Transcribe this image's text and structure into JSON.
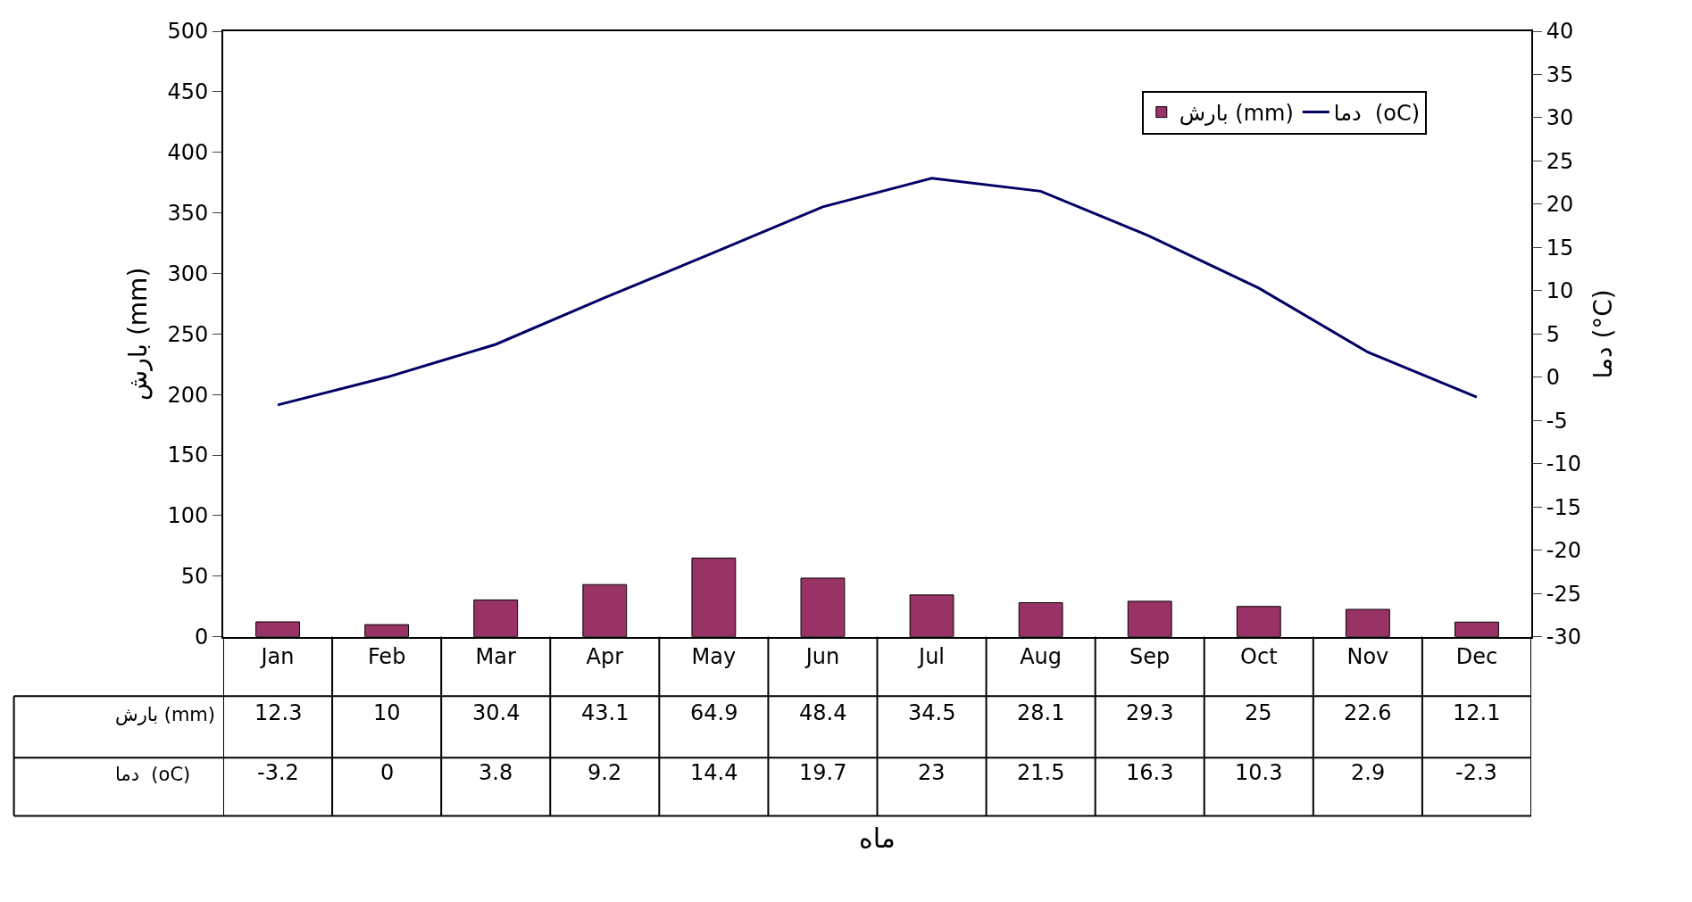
{
  "chart_data": {
    "type": "bar",
    "annotations": [
      "ماه"
    ],
    "ylabel": "بارش (mm)",
    "y2label": "دما (°C)",
    "categories": [
      "Jan",
      "Feb",
      "Mar",
      "Apr",
      "May",
      "Jun",
      "Jul",
      "Aug",
      "Sep",
      "Oct",
      "Nov",
      "Dec"
    ],
    "series": [
      {
        "name": "بارش (mm)",
        "color": "#993366",
        "values": [
          12.3,
          10,
          30.4,
          43.1,
          64.9,
          48.4,
          34.5,
          28.1,
          29.3,
          25,
          22.6,
          12.1
        ]
      },
      {
        "name": "دما  (oC)",
        "type": "line",
        "axis": "y2",
        "color": "#000066",
        "marker": "none",
        "line_style": "solid",
        "values": [
          -3.2,
          0,
          3.8,
          9.2,
          14.4,
          19.7,
          23,
          21.5,
          16.3,
          10.3,
          2.9,
          -2.3
        ]
      }
    ],
    "ylim": [
      0,
      500
    ],
    "yticks": [
      0,
      50,
      100,
      150,
      200,
      250,
      300,
      350,
      400,
      450,
      500
    ],
    "y2lim": [
      -30,
      40
    ],
    "y2ticks": [
      -30,
      -25,
      -20,
      -15,
      -10,
      -5,
      0,
      5,
      10,
      15,
      20,
      25,
      30,
      35,
      40
    ],
    "data_labels": true,
    "legend": "top right"
  }
}
